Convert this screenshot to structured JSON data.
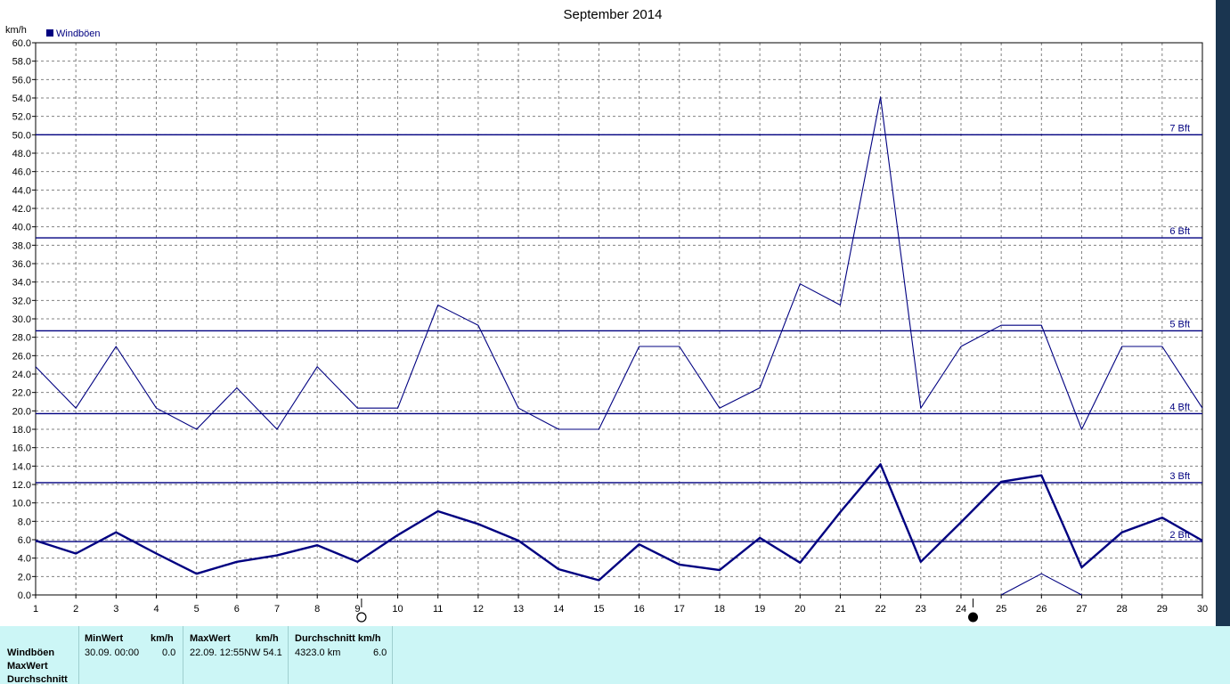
{
  "chart_data": {
    "type": "line",
    "title": "September 2014",
    "ylabel": "km/h",
    "ylim": [
      0,
      60
    ],
    "y_ticks": [
      "0.0",
      "2.0",
      "4.0",
      "6.0",
      "8.0",
      "10.0",
      "12.0",
      "14.0",
      "16.0",
      "18.0",
      "20.0",
      "22.0",
      "24.0",
      "26.0",
      "28.0",
      "30.0",
      "32.0",
      "34.0",
      "36.0",
      "38.0",
      "40.0",
      "42.0",
      "44.0",
      "46.0",
      "48.0",
      "50.0",
      "52.0",
      "54.0",
      "56.0",
      "58.0",
      "60.0"
    ],
    "x": [
      "1",
      "2",
      "3",
      "4",
      "5",
      "6",
      "7",
      "8",
      "9",
      "10",
      "11",
      "12",
      "13",
      "14",
      "15",
      "16",
      "17",
      "18",
      "19",
      "20",
      "21",
      "22",
      "23",
      "24",
      "25",
      "26",
      "27",
      "28",
      "29",
      "30"
    ],
    "grid": true,
    "legend": {
      "placement": "top-left",
      "entries": [
        "Windböen"
      ]
    },
    "series": [
      {
        "name": "Windböen",
        "color": "#000080",
        "style": "thin",
        "values": [
          24.8,
          20.3,
          27.0,
          20.3,
          18.0,
          22.5,
          18.0,
          24.8,
          20.3,
          20.3,
          31.5,
          29.3,
          20.3,
          18.0,
          18.0,
          27.0,
          27.0,
          20.3,
          22.5,
          33.8,
          31.5,
          54.1,
          20.3,
          27.0,
          29.3,
          29.3,
          18.0,
          27.0,
          27.0,
          20.3
        ]
      },
      {
        "color": "#000080",
        "style": "thick",
        "values": [
          5.9,
          4.5,
          6.8,
          4.5,
          2.3,
          3.6,
          4.3,
          5.4,
          3.6,
          6.5,
          9.1,
          7.7,
          5.9,
          2.8,
          1.6,
          5.5,
          3.3,
          2.7,
          6.2,
          3.5,
          9.0,
          14.2,
          3.6,
          7.9,
          12.3,
          13.0,
          3.0,
          6.8,
          8.4,
          5.9
        ]
      },
      {
        "color": "#000080",
        "style": "thin",
        "x": [
          25,
          26,
          27
        ],
        "values": [
          0,
          2.3,
          0
        ]
      }
    ],
    "beaufort_lines": [
      {
        "label": "2 Bft",
        "value": 5.8
      },
      {
        "label": "3 Bft",
        "value": 12.2
      },
      {
        "label": "4 Bft",
        "value": 19.7
      },
      {
        "label": "5 Bft",
        "value": 28.7
      },
      {
        "label": "6 Bft",
        "value": 38.8
      },
      {
        "label": "7 Bft",
        "value": 50.0
      }
    ],
    "moon_phases": [
      {
        "day": 9.1,
        "phase": "full-moon"
      },
      {
        "day": 24.3,
        "phase": "new-moon"
      }
    ]
  },
  "stats": {
    "rows": [
      "Windböen",
      "MaxWert",
      "Durchschnitt"
    ],
    "min": {
      "title": "MinWert",
      "unit": "km/h",
      "date": "30.09.  00:00",
      "value": "0.0"
    },
    "max": {
      "title": "MaxWert",
      "unit": "km/h",
      "date": "22.09.  12:55",
      "value": "NW 54.1"
    },
    "avg": {
      "title": "Durchschnitt km/h",
      "distance": "4323.0 km",
      "value": "6.0"
    }
  },
  "colors": {
    "series": "#000080",
    "grid": "#808080",
    "panel_bg": "#ccf6f6",
    "side_strip": "#1a3550"
  }
}
